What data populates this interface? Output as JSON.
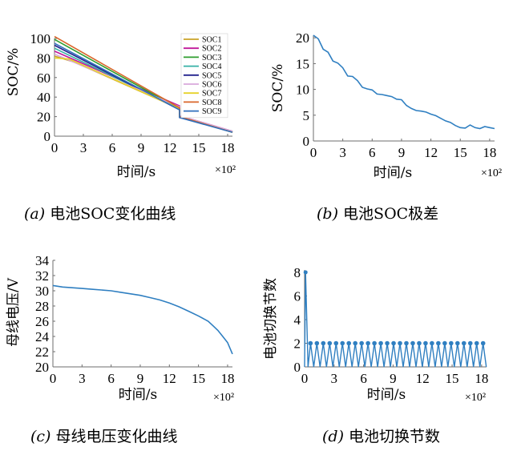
{
  "chart_data": [
    {
      "type": "line",
      "caption_letter": "(a)",
      "caption_text": "电池SOC变化曲线",
      "xlabel": "时间/s",
      "ylabel": "SOC/%",
      "x_multiplier": "×10²",
      "xlim": [
        0,
        18.5
      ],
      "ylim": [
        0,
        100
      ],
      "xticks": [
        0,
        3,
        6,
        9,
        12,
        15,
        18
      ],
      "yticks": [
        0,
        20,
        40,
        60,
        80,
        100
      ],
      "legend_position": "top-right",
      "series": [
        {
          "name": "SOC1",
          "color": "#c9a227",
          "x": [
            0,
            2,
            13,
            13.01,
            18.5
          ],
          "y": [
            82,
            76,
            28,
            20,
            4
          ]
        },
        {
          "name": "SOC2",
          "color": "#c0189a",
          "x": [
            0,
            13,
            13.01,
            18.5
          ],
          "y": [
            87,
            31,
            21,
            5
          ]
        },
        {
          "name": "SOC3",
          "color": "#2e9e2e",
          "x": [
            0,
            13,
            13.01,
            18.5
          ],
          "y": [
            99,
            28,
            20,
            4
          ]
        },
        {
          "name": "SOC4",
          "color": "#35b0a6",
          "x": [
            0,
            13,
            13.01,
            18.5
          ],
          "y": [
            90,
            28,
            20,
            5
          ]
        },
        {
          "name": "SOC5",
          "color": "#23238e",
          "x": [
            0,
            13,
            13.01,
            18.5
          ],
          "y": [
            93,
            27,
            19,
            5
          ]
        },
        {
          "name": "SOC6",
          "color": "#d8a8dc",
          "x": [
            0,
            13,
            13.01,
            18.5
          ],
          "y": [
            84,
            30,
            21,
            5
          ]
        },
        {
          "name": "SOC7",
          "color": "#e6d22a",
          "x": [
            0,
            1.5,
            13,
            13.01,
            18.5
          ],
          "y": [
            80,
            79,
            28,
            20,
            4
          ]
        },
        {
          "name": "SOC8",
          "color": "#d9662a",
          "x": [
            0,
            13,
            13.01,
            18.5
          ],
          "y": [
            102,
            29,
            20,
            4
          ]
        },
        {
          "name": "SOC9",
          "color": "#2f6fbd",
          "x": [
            0,
            13,
            13.01,
            18.5
          ],
          "y": [
            95,
            27,
            19,
            4
          ]
        }
      ]
    },
    {
      "type": "line",
      "caption_letter": "(b)",
      "caption_text": "电池SOC极差",
      "xlabel": "时间/s",
      "ylabel": "SOC/%",
      "x_multiplier": "×10²",
      "xlim": [
        0,
        18.5
      ],
      "ylim": [
        0,
        20.5
      ],
      "xticks": [
        0,
        3,
        6,
        9,
        12,
        15,
        18
      ],
      "yticks": [
        0,
        5,
        10,
        15,
        20
      ],
      "series": [
        {
          "name": "",
          "color": "#2f7fc1",
          "x": [
            0,
            0.5,
            1,
            1.5,
            2,
            2.5,
            3,
            3.5,
            4,
            4.5,
            5,
            5.5,
            6,
            6.5,
            7,
            7.5,
            8,
            8.5,
            9,
            9.5,
            10,
            10.5,
            11,
            11.5,
            12,
            12.5,
            13,
            13.5,
            14,
            14.5,
            15,
            15.5,
            16,
            16.5,
            17,
            17.5,
            18,
            18.5
          ],
          "y": [
            20.5,
            19.8,
            17.8,
            17.2,
            15.5,
            15.1,
            14.2,
            12.6,
            12.5,
            11.7,
            10.4,
            10.1,
            9.9,
            9.1,
            9.0,
            8.8,
            8.6,
            8.1,
            8.0,
            6.9,
            6.3,
            5.9,
            5.8,
            5.6,
            5.2,
            4.9,
            4.4,
            3.9,
            3.6,
            3.0,
            2.6,
            2.5,
            3.1,
            2.6,
            2.4,
            2.8,
            2.6,
            2.4
          ]
        }
      ]
    },
    {
      "type": "line",
      "caption_letter": "(c)",
      "caption_text": "母线电压变化曲线",
      "xlabel": "时间/s",
      "ylabel": "母线电压/V",
      "x_multiplier": "×10²",
      "xlim": [
        0,
        18.5
      ],
      "ylim": [
        20,
        34
      ],
      "xticks": [
        0,
        3,
        6,
        9,
        12,
        15,
        18
      ],
      "yticks": [
        20,
        22,
        24,
        26,
        28,
        30,
        32,
        34
      ],
      "series": [
        {
          "name": "",
          "color": "#2f7fc1",
          "x": [
            0,
            1,
            2,
            3,
            4,
            5,
            6,
            7,
            8,
            9,
            10,
            11,
            12,
            13,
            14,
            15,
            16,
            16.5,
            17,
            17.5,
            18,
            18.5
          ],
          "y": [
            30.7,
            30.5,
            30.4,
            30.3,
            30.2,
            30.1,
            30.0,
            29.8,
            29.6,
            29.4,
            29.1,
            28.8,
            28.4,
            27.9,
            27.3,
            26.7,
            26.0,
            25.4,
            24.8,
            24.0,
            23.2,
            21.7
          ]
        }
      ]
    },
    {
      "type": "line",
      "caption_letter": "(d)",
      "caption_text": "电池切换节数",
      "xlabel": "时间/s",
      "ylabel": "电池切换节数",
      "x_multiplier": "×10²",
      "xlim": [
        0,
        18.5
      ],
      "ylim": [
        0,
        8.2
      ],
      "xticks": [
        0,
        3,
        6,
        9,
        12,
        15,
        18
      ],
      "yticks": [
        0,
        2,
        4,
        6,
        8
      ],
      "series": [
        {
          "name": "",
          "color": "#2f7fc1",
          "pattern": "one peak of 8 at x=0.1, then 2 for switching instants every 0.65 (x10^2 s) from x=0.6 to x=18.3, returning to 0 between switches",
          "peak": {
            "x": 0.1,
            "y": 8
          },
          "switch_value": 2,
          "switch_start": 0.6,
          "switch_step": 0.65,
          "switch_end": 18.3
        }
      ]
    }
  ]
}
